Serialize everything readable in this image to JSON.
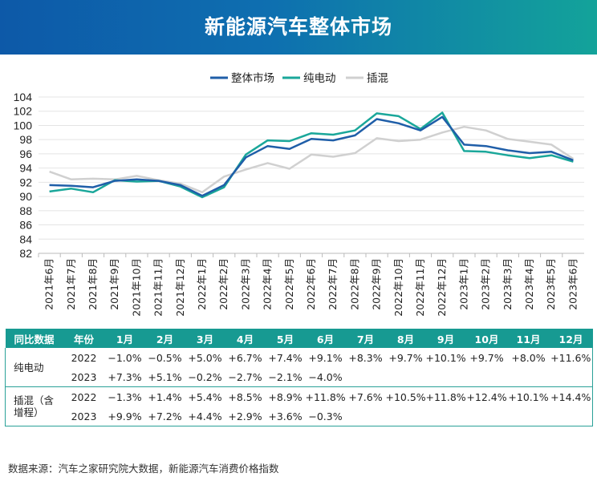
{
  "header": {
    "title": "新能源汽车整体市场"
  },
  "colors": {
    "overall": "#1f5ea8",
    "bev": "#1aa79a",
    "phev": "#d0d0d0",
    "table_header": "#179a92"
  },
  "chart_data": {
    "type": "line",
    "title": "新能源汽车整体市场",
    "legend_position": "top-center",
    "categories": [
      "2021年6月",
      "2021年7月",
      "2021年8月",
      "2021年9月",
      "2021年10月",
      "2021年11月",
      "2021年12月",
      "2022年1月",
      "2022年2月",
      "2022年3月",
      "2022年4月",
      "2022年5月",
      "2022年6月",
      "2022年7月",
      "2022年8月",
      "2022年9月",
      "2022年10月",
      "2022年11月",
      "2022年12月",
      "2023年1月",
      "2023年2月",
      "2023年3月",
      "2023年4月",
      "2023年5月",
      "2023年6月"
    ],
    "ylim": [
      82,
      104
    ],
    "yticks": [
      82,
      84,
      86,
      88,
      90,
      92,
      94,
      96,
      98,
      100,
      102,
      104
    ],
    "grid": true,
    "series": [
      {
        "name": "整体市场",
        "color": "#1f5ea8",
        "values": [
          91.6,
          91.5,
          91.3,
          92.2,
          92.4,
          92.2,
          91.6,
          90.1,
          91.6,
          95.5,
          97.1,
          96.7,
          98.1,
          97.9,
          98.6,
          100.9,
          100.3,
          99.3,
          101.2,
          97.3,
          97.1,
          96.5,
          96.1,
          96.3,
          95.1
        ]
      },
      {
        "name": "纯电动",
        "color": "#1aa79a",
        "values": [
          90.7,
          91.1,
          90.6,
          92.3,
          92.1,
          92.2,
          91.4,
          89.9,
          91.3,
          95.9,
          97.9,
          97.8,
          98.9,
          98.7,
          99.3,
          101.7,
          101.3,
          99.5,
          101.8,
          96.4,
          96.3,
          95.8,
          95.4,
          95.8,
          94.9
        ]
      },
      {
        "name": "插混",
        "color": "#d0d0d0",
        "values": [
          93.5,
          92.4,
          92.5,
          92.4,
          92.9,
          92.3,
          91.8,
          90.6,
          92.8,
          93.8,
          94.7,
          93.9,
          95.9,
          95.6,
          96.1,
          98.2,
          97.8,
          98.0,
          99.0,
          99.8,
          99.3,
          98.1,
          97.7,
          97.3,
          95.3
        ]
      }
    ]
  },
  "table": {
    "headers": [
      "同比数据",
      "年份",
      "1月",
      "2月",
      "3月",
      "4月",
      "5月",
      "6月",
      "7月",
      "8月",
      "9月",
      "10月",
      "11月",
      "12月"
    ],
    "rows": [
      {
        "group": "纯电动",
        "year": "2022",
        "values": [
          "−1.0%",
          "−0.5%",
          "+5.0%",
          "+6.7%",
          "+7.4%",
          "+9.1%",
          "+8.3%",
          "+9.7%",
          "+10.1%",
          "+9.7%",
          "+8.0%",
          "+11.6%"
        ]
      },
      {
        "group": "",
        "year": "2023",
        "values": [
          "+7.3%",
          "+5.1%",
          "−0.2%",
          "−2.7%",
          "−2.1%",
          "−4.0%",
          "",
          "",
          "",
          "",
          "",
          ""
        ]
      },
      {
        "group": "插混（含增程）",
        "year": "2022",
        "values": [
          "−1.3%",
          "+1.4%",
          "+5.4%",
          "+8.5%",
          "+8.9%",
          "+11.8%",
          "+7.6%",
          "+10.5%",
          "+11.8%",
          "+12.4%",
          "+10.1%",
          "+14.4%"
        ]
      },
      {
        "group": "",
        "year": "2023",
        "values": [
          "+9.9%",
          "+7.2%",
          "+4.4%",
          "+2.9%",
          "+3.6%",
          "−0.3%",
          "",
          "",
          "",
          "",
          "",
          ""
        ]
      }
    ]
  },
  "footer": {
    "source": "数据来源：汽车之家研究院大数据，新能源汽车消费价格指数"
  }
}
